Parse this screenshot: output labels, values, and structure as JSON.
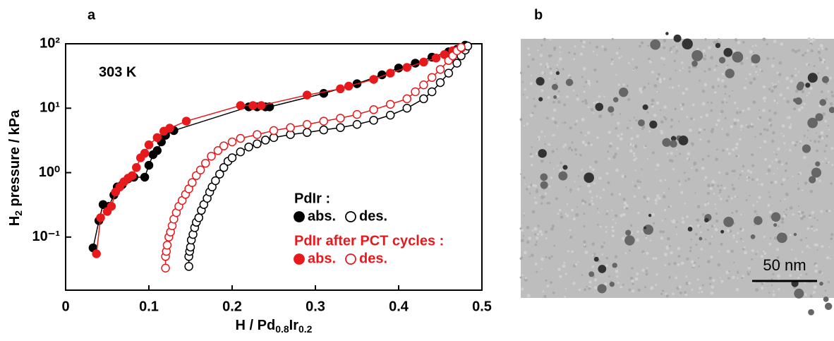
{
  "panel_labels": [
    "a",
    "b"
  ],
  "chart_data": {
    "type": "line",
    "annotation": "303 K",
    "xlabel": [
      "H / Pd",
      "0.8",
      "Ir",
      "0.2"
    ],
    "ylabel": [
      "H",
      "2",
      " pressure / kPa"
    ],
    "xlim": [
      0,
      0.5
    ],
    "xticks": [
      0,
      0.1,
      0.2,
      0.3,
      0.4,
      0.5
    ],
    "ylim": [
      0.015,
      100
    ],
    "ylog": true,
    "yticks": [
      {
        "value": 0.1,
        "label": "10⁻¹"
      },
      {
        "value": 1,
        "label": "10⁰"
      },
      {
        "value": 10,
        "label": "10¹"
      },
      {
        "value": 100,
        "label": "10²"
      }
    ],
    "legend_loc": "lower right",
    "legend_titles": [
      "PdIr :",
      "PdIr after PCT cycles :"
    ],
    "series": [
      {
        "name": "abs.",
        "color": "#000000",
        "marker": "filled",
        "x": [
          0.033,
          0.04,
          0.045,
          0.052,
          0.058,
          0.062,
          0.068,
          0.075,
          0.082,
          0.095,
          0.1,
          0.105,
          0.11,
          0.115,
          0.12,
          0.13,
          0.22,
          0.23,
          0.24,
          0.245,
          0.31,
          0.35,
          0.38,
          0.4,
          0.42,
          0.44,
          0.46,
          0.47,
          0.48
        ],
        "values": [
          0.068,
          0.18,
          0.32,
          0.3,
          0.45,
          0.6,
          0.65,
          0.8,
          0.85,
          0.85,
          1.3,
          1.9,
          2.2,
          3.0,
          3.8,
          4.5,
          10.5,
          10.5,
          10.5,
          10.5,
          17,
          24,
          33,
          42,
          50,
          62,
          75,
          82,
          95
        ]
      },
      {
        "name": "des.",
        "color": "#000000",
        "marker": "open",
        "x": [
          0.148,
          0.148,
          0.149,
          0.15,
          0.151,
          0.153,
          0.155,
          0.157,
          0.16,
          0.163,
          0.166,
          0.17,
          0.173,
          0.176,
          0.18,
          0.185,
          0.19,
          0.195,
          0.2,
          0.21,
          0.22,
          0.23,
          0.24,
          0.25,
          0.27,
          0.29,
          0.31,
          0.33,
          0.35,
          0.37,
          0.39,
          0.41,
          0.43,
          0.44,
          0.45,
          0.46,
          0.47,
          0.475,
          0.48,
          0.483
        ],
        "values": [
          0.035,
          0.05,
          0.06,
          0.07,
          0.09,
          0.11,
          0.14,
          0.17,
          0.2,
          0.26,
          0.32,
          0.4,
          0.5,
          0.6,
          0.75,
          0.95,
          1.2,
          1.5,
          1.7,
          2.1,
          2.5,
          2.8,
          3.2,
          3.5,
          3.9,
          4.2,
          4.6,
          5.0,
          5.6,
          6.5,
          7.8,
          10,
          14,
          18,
          25,
          35,
          50,
          65,
          80,
          92
        ]
      },
      {
        "name": "abs.",
        "color": "#e8191c",
        "marker": "filled",
        "x": [
          0.037,
          0.042,
          0.05,
          0.055,
          0.06,
          0.065,
          0.07,
          0.075,
          0.08,
          0.085,
          0.09,
          0.095,
          0.1,
          0.11,
          0.118,
          0.125,
          0.145,
          0.21,
          0.225,
          0.235,
          0.29,
          0.33,
          0.34,
          0.37,
          0.39,
          0.41,
          0.43,
          0.445,
          0.455,
          0.465,
          0.475
        ],
        "values": [
          0.055,
          0.2,
          0.25,
          0.3,
          0.5,
          0.6,
          0.72,
          0.82,
          0.9,
          1.2,
          1.7,
          2.0,
          2.7,
          3.5,
          4.4,
          4.9,
          6.3,
          11,
          11,
          11,
          16,
          20,
          22,
          28,
          35,
          43,
          52,
          60,
          68,
          78,
          85
        ]
      },
      {
        "name": "des.",
        "color": "#e8191c",
        "marker": "open",
        "x": [
          0.12,
          0.12,
          0.121,
          0.122,
          0.124,
          0.126,
          0.128,
          0.13,
          0.133,
          0.136,
          0.14,
          0.144,
          0.148,
          0.152,
          0.157,
          0.162,
          0.168,
          0.175,
          0.183,
          0.19,
          0.2,
          0.21,
          0.23,
          0.25,
          0.27,
          0.29,
          0.31,
          0.33,
          0.35,
          0.37,
          0.39,
          0.41,
          0.42,
          0.43,
          0.44,
          0.45,
          0.46,
          0.465,
          0.47,
          0.475
        ],
        "values": [
          0.033,
          0.05,
          0.06,
          0.075,
          0.1,
          0.12,
          0.15,
          0.19,
          0.24,
          0.3,
          0.37,
          0.46,
          0.56,
          0.7,
          0.9,
          1.1,
          1.4,
          1.8,
          2.2,
          2.6,
          3.0,
          3.4,
          3.9,
          4.5,
          5.0,
          5.6,
          6.3,
          7.0,
          8.0,
          9.5,
          11.5,
          14,
          18,
          23,
          30,
          40,
          55,
          65,
          78,
          88
        ]
      }
    ]
  },
  "image": {
    "scale_bar": "50 nm"
  }
}
